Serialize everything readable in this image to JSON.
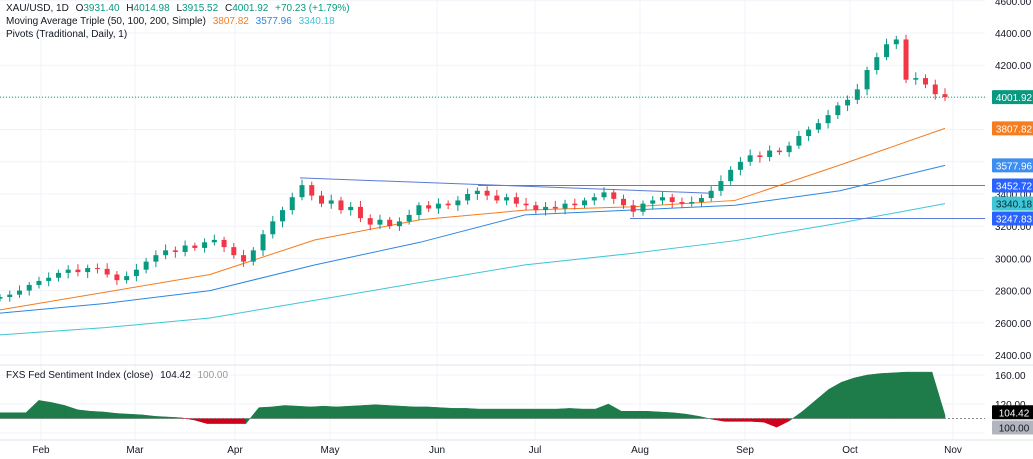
{
  "header": {
    "symbol": "XAU/USD, 1D",
    "o_label": "O",
    "open": "3931.40",
    "h_label": "H",
    "high": "4014.98",
    "l_label": "L",
    "low": "3915.52",
    "c_label": "C",
    "close": "4001.92",
    "change": "+70.23 (+1.79%)",
    "ma_title": "Moving Average Triple (50, 100, 200, Simple)",
    "ma50": "3807.82",
    "ma100": "3577.96",
    "ma200": "3340.18",
    "pivots_title": "Pivots (Traditional, Daily, 1)"
  },
  "indicator": {
    "title": "FXS Fed Sentiment Index (close)",
    "value": "104.42",
    "baseline": "100.00"
  },
  "colors": {
    "up": "#089981",
    "down": "#f23645",
    "ma50": "#f57c1f",
    "ma100": "#2e86de",
    "ma200": "#3ec6d6",
    "pivot": "#2962ff",
    "sent_pos": "#1e7b4a",
    "sent_neg": "#d0021b"
  },
  "chart_data": [
    {
      "type": "candlestick",
      "title": "XAU/USD, 1D",
      "x_ticks": [
        "Feb",
        "Mar",
        "Apr",
        "May",
        "Jun",
        "Jul",
        "Aug",
        "Sep",
        "Oct",
        "Nov"
      ],
      "y_ticks": [
        "4600.00",
        "4400.00",
        "4200.00",
        "3400.00",
        "3200.00",
        "3000.00",
        "2800.00",
        "2600.00",
        "2400.00"
      ],
      "ylim": [
        2400,
        4600
      ],
      "grid": true,
      "closes": [
        2760,
        2775,
        2800,
        2835,
        2860,
        2880,
        2910,
        2930,
        2915,
        2940,
        2935,
        2900,
        2865,
        2890,
        2930,
        2980,
        3020,
        3050,
        3040,
        3080,
        3065,
        3100,
        3115,
        3070,
        3020,
        2980,
        3050,
        3150,
        3230,
        3300,
        3380,
        3455,
        3390,
        3340,
        3360,
        3300,
        3320,
        3250,
        3210,
        3240,
        3200,
        3230,
        3270,
        3330,
        3310,
        3340,
        3330,
        3360,
        3400,
        3420,
        3390,
        3360,
        3380,
        3340,
        3330,
        3300,
        3320,
        3310,
        3340,
        3330,
        3360,
        3380,
        3410,
        3370,
        3330,
        3290,
        3340,
        3360,
        3380,
        3350,
        3340,
        3350,
        3375,
        3420,
        3480,
        3550,
        3600,
        3640,
        3630,
        3670,
        3660,
        3700,
        3760,
        3800,
        3840,
        3890,
        3950,
        3985,
        4050,
        4170,
        4250,
        4330,
        4360,
        4110,
        4120,
        4080,
        4020,
        4001.92
      ],
      "series": [
        {
          "name": "50",
          "x_months_frac": [
            0,
            1,
            2,
            3,
            4,
            5,
            6,
            7,
            8,
            9
          ],
          "values": [
            2680,
            2790,
            2900,
            3115,
            3240,
            3300,
            3320,
            3360,
            3580,
            3807.82
          ]
        },
        {
          "name": "100",
          "values": [
            2660,
            2720,
            2800,
            2960,
            3100,
            3270,
            3300,
            3330,
            3420,
            3577.96
          ]
        },
        {
          "name": "200",
          "values": [
            2525,
            2570,
            2630,
            2740,
            2850,
            2960,
            3030,
            3110,
            3220,
            3340.18
          ]
        }
      ],
      "pivots": [
        {
          "label": "3452.72",
          "value": 3452.72
        },
        {
          "label": "3247.83",
          "value": 3247.83
        }
      ],
      "trendline": [
        3500,
        3405
      ],
      "last_price": "4001.92"
    },
    {
      "type": "area",
      "title": "FXS Fed Sentiment Index (close)",
      "baseline": 100,
      "y_ticks": [
        "160.00",
        "120.00"
      ],
      "ylim": [
        80,
        175
      ],
      "values": [
        108,
        108,
        108,
        125,
        122,
        118,
        112,
        110,
        109,
        107,
        106,
        105,
        103,
        102,
        101,
        98,
        93,
        93,
        93,
        93,
        115,
        116,
        118,
        117,
        116,
        117,
        116,
        117,
        118,
        119,
        118,
        117,
        116,
        116,
        115,
        114,
        114,
        113,
        113,
        113,
        113,
        113,
        113,
        113,
        114,
        113,
        113,
        120,
        110,
        110,
        110,
        109,
        108,
        106,
        103,
        99,
        96,
        96,
        96,
        95,
        88,
        97,
        110,
        125,
        140,
        150,
        156,
        160,
        162,
        163,
        164,
        164,
        164,
        104.42
      ]
    }
  ]
}
